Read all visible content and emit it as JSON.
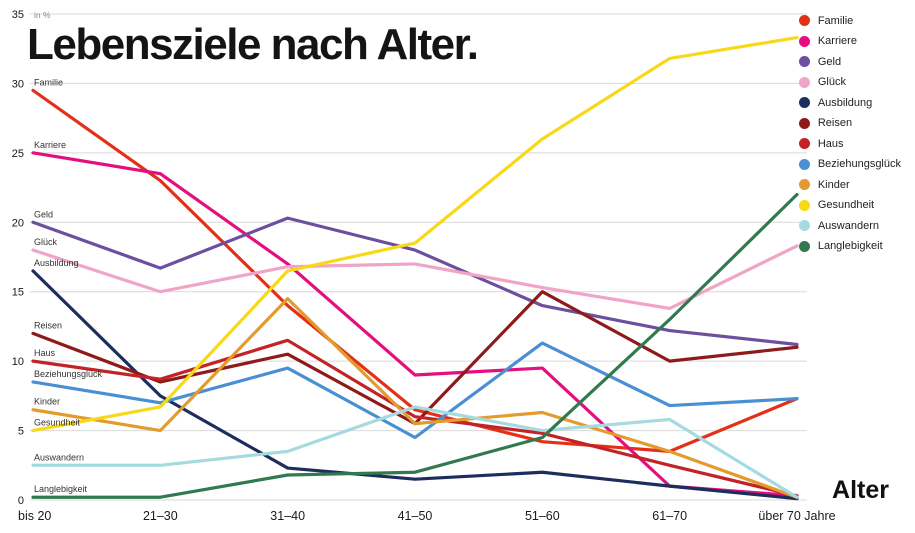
{
  "page": {
    "title": "Lebensziele nach Alter.",
    "x_axis_title": "Alter",
    "unit_label": "in %"
  },
  "chart_data": {
    "type": "line",
    "title": "Lebensziele nach Alter.",
    "xlabel": "Alter",
    "ylabel": "in %",
    "ylim": [
      0,
      35
    ],
    "yticks": [
      0,
      5,
      10,
      15,
      20,
      25,
      30,
      35
    ],
    "grid": true,
    "legend_position": "top-right",
    "categories": [
      "bis 20",
      "21–30",
      "31–40",
      "41–50",
      "51–60",
      "61–70",
      "über 70 Jahre"
    ],
    "series": [
      {
        "name": "Familie",
        "color": "#e23118",
        "values": [
          29.5,
          23,
          14,
          6.5,
          4.2,
          3.5,
          7.3
        ]
      },
      {
        "name": "Karriere",
        "color": "#e40f7e",
        "values": [
          25,
          23.5,
          17,
          9,
          9.5,
          1,
          0.3
        ]
      },
      {
        "name": "Geld",
        "color": "#6c4f9e",
        "values": [
          20,
          16.7,
          20.3,
          18,
          14,
          12.2,
          11.2
        ]
      },
      {
        "name": "Glück",
        "color": "#f0a5c8",
        "values": [
          18,
          15,
          16.8,
          17,
          15.3,
          13.8,
          18.3
        ]
      },
      {
        "name": "Ausbildung",
        "color": "#1c2d5e",
        "values": [
          16.5,
          7.5,
          2.3,
          1.5,
          2,
          1,
          0.1
        ]
      },
      {
        "name": "Reisen",
        "color": "#8f1a1a",
        "values": [
          12,
          8.5,
          10.5,
          5.5,
          15,
          10,
          11
        ]
      },
      {
        "name": "Haus",
        "color": "#c22326",
        "values": [
          10,
          8.7,
          11.5,
          6,
          4.8,
          2.5,
          0.3
        ]
      },
      {
        "name": "Beziehungsglück",
        "color": "#4a8fd3",
        "values": [
          8.5,
          7,
          9.5,
          4.5,
          11.3,
          6.8,
          7.3
        ]
      },
      {
        "name": "Kinder",
        "color": "#e39b2d",
        "values": [
          6.5,
          5,
          14.5,
          5.5,
          6.3,
          3.5,
          0.2
        ]
      },
      {
        "name": "Gesundheit",
        "color": "#f7d917",
        "values": [
          5,
          6.7,
          16.5,
          18.5,
          26,
          31.8,
          33.3
        ]
      },
      {
        "name": "Auswandern",
        "color": "#a5dbdf",
        "values": [
          2.5,
          2.5,
          3.5,
          6.7,
          5,
          5.8,
          0.2
        ]
      },
      {
        "name": "Langlebigkeit",
        "color": "#317a4f",
        "values": [
          0.2,
          0.2,
          1.8,
          2,
          4.5,
          13,
          22
        ]
      }
    ]
  }
}
